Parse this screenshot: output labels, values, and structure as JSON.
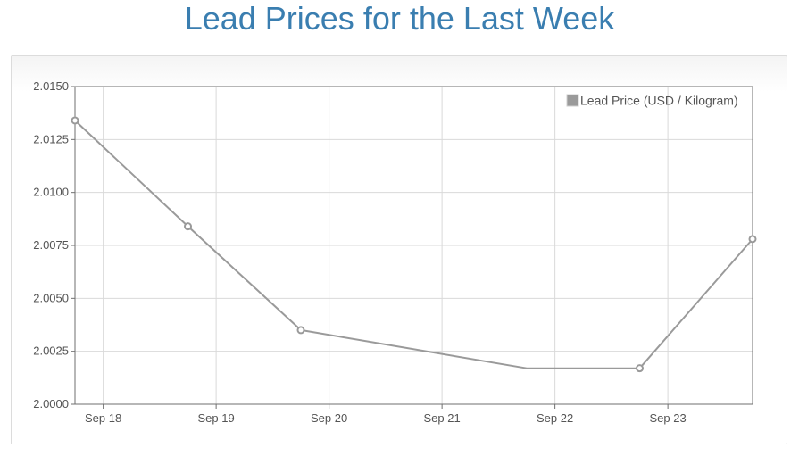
{
  "title": "Lead Prices for the Last Week",
  "chart_data": {
    "type": "line",
    "title": "Lead Prices for the Last Week",
    "xlabel": "",
    "ylabel": "",
    "x_tick_labels": [
      "Sep 18",
      "Sep 19",
      "Sep 20",
      "Sep 21",
      "Sep 22",
      "Sep 23"
    ],
    "x_ticks": [
      "2023-09-18",
      "2023-09-19",
      "2023-09-20",
      "2023-09-21",
      "2023-09-22",
      "2023-09-23"
    ],
    "xlim": [
      "2023-09-17 18:00",
      "2023-09-23 18:00"
    ],
    "y_tick_labels": [
      "2.0150",
      "2.0125",
      "2.0100",
      "2.0075",
      "2.0050",
      "2.0025",
      "2.0000"
    ],
    "ylim": [
      2.0,
      2.015
    ],
    "grid": true,
    "legend_position": "top-right",
    "series": [
      {
        "name": "Lead Price (USD / Kilogram)",
        "color": "#9a9a9a",
        "x": [
          "2023-09-17 18:00",
          "2023-09-18 18:00",
          "2023-09-19 18:00",
          "2023-09-21 18:00",
          "2023-09-22 18:00",
          "2023-09-23 18:00"
        ],
        "y": [
          2.0134,
          2.0084,
          2.0035,
          2.0017,
          2.0017,
          2.0078
        ],
        "markers": [
          true,
          true,
          true,
          false,
          true,
          true
        ]
      }
    ]
  }
}
